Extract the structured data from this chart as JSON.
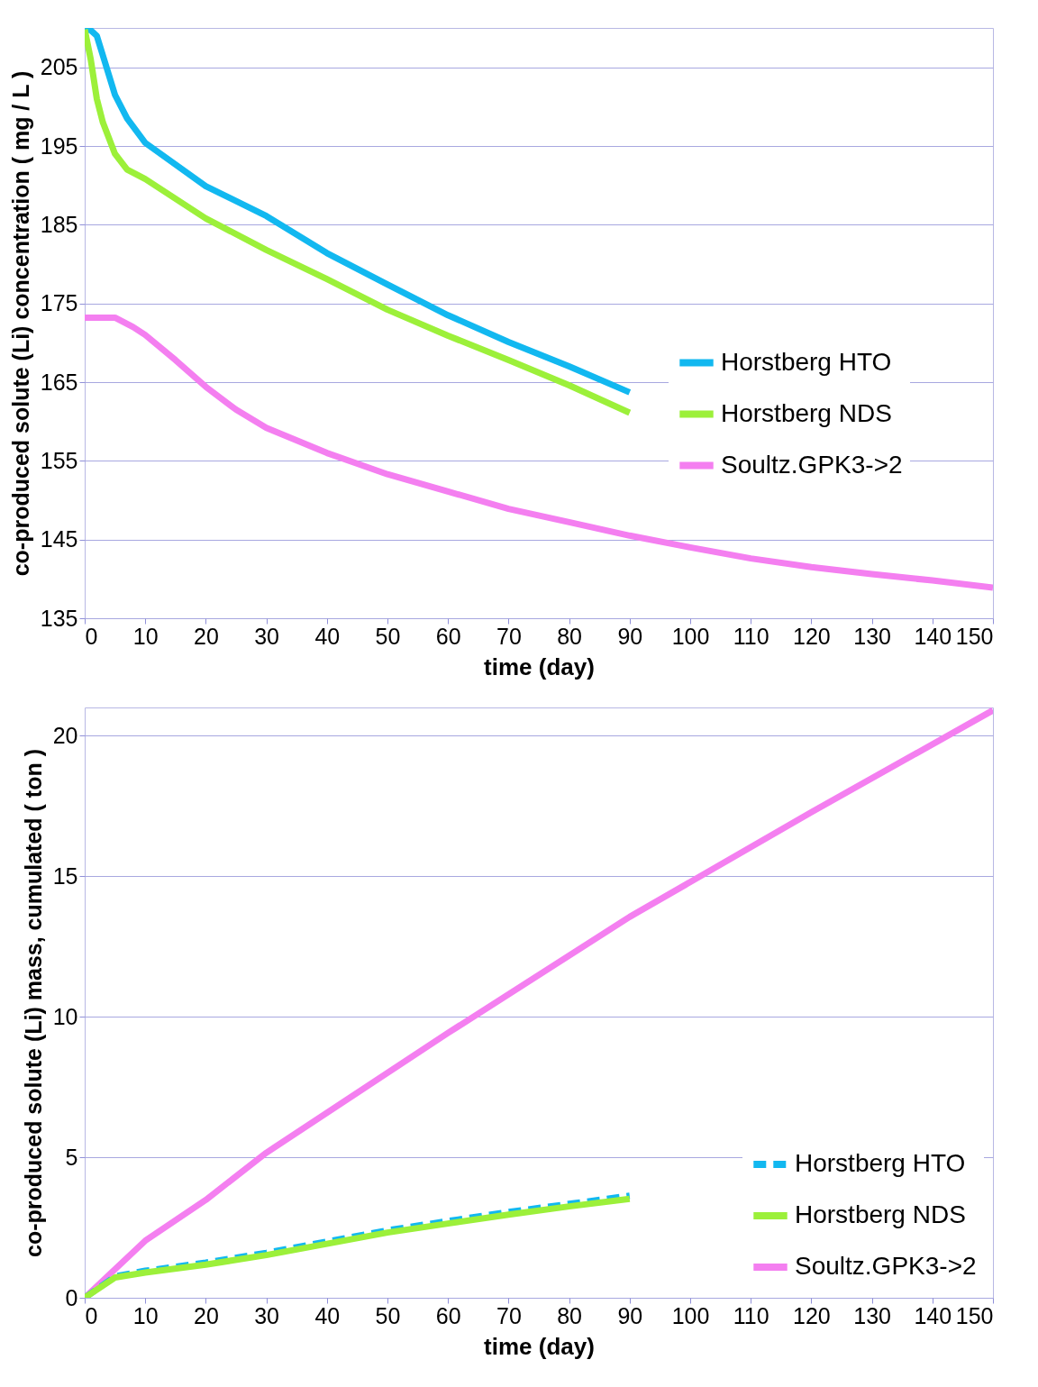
{
  "chart_data": [
    {
      "type": "line",
      "xlabel": "time (day)",
      "ylabel": "co-produced solute (Li) concentration ( mg / L )",
      "xlim": [
        0,
        150
      ],
      "xticks": [
        0,
        10,
        20,
        30,
        40,
        50,
        60,
        70,
        80,
        90,
        100,
        110,
        120,
        130,
        140,
        150
      ],
      "ylim": [
        135,
        210
      ],
      "yticks": [
        135,
        145,
        155,
        165,
        175,
        185,
        195,
        205
      ],
      "grid": "y",
      "legend": "right",
      "marker": "none",
      "series": [
        {
          "name": "Horstberg HTO",
          "color": "#12b8f0",
          "line_style": "solid",
          "x": [
            0,
            1,
            2,
            3,
            5,
            7,
            10,
            20,
            30,
            40,
            50,
            60,
            70,
            80,
            90
          ],
          "values": [
            209.8,
            209.7,
            209,
            206.5,
            201.5,
            198.5,
            195.4,
            189.9,
            186.1,
            181.4,
            177.4,
            173.5,
            170.1,
            167,
            163.7
          ]
        },
        {
          "name": "Horstberg NDS",
          "color": "#9cf03a",
          "line_style": "solid",
          "x": [
            0,
            1,
            2,
            3,
            5,
            7,
            10,
            20,
            30,
            40,
            50,
            60,
            70,
            80,
            90
          ],
          "values": [
            209.8,
            206,
            201,
            198,
            194,
            192,
            190.8,
            185.8,
            181.8,
            178.1,
            174.2,
            170.9,
            167.8,
            164.6,
            161.1
          ]
        },
        {
          "name": "Soultz.GPK3->2",
          "color": "#f47ff0",
          "line_style": "solid",
          "x": [
            0,
            5,
            8,
            10,
            15,
            20,
            25,
            30,
            40,
            50,
            60,
            70,
            80,
            90,
            100,
            110,
            120,
            130,
            140,
            150
          ],
          "values": [
            173.2,
            173.2,
            172,
            171,
            167.8,
            164.4,
            161.5,
            159.2,
            156,
            153.3,
            151.1,
            148.9,
            147.2,
            145.5,
            144,
            142.6,
            141.5,
            140.6,
            139.8,
            138.9
          ]
        }
      ]
    },
    {
      "type": "line",
      "xlabel": "time (day)",
      "ylabel": "co-produced solute (Li) mass, cumulated ( ton )",
      "xlim": [
        0,
        150
      ],
      "xticks": [
        0,
        10,
        20,
        30,
        40,
        50,
        60,
        70,
        80,
        90,
        100,
        110,
        120,
        130,
        140,
        150
      ],
      "ylim": [
        0,
        21
      ],
      "yticks": [
        0,
        5,
        10,
        15,
        20
      ],
      "grid": "y",
      "legend": "bottom right",
      "marker": "none",
      "series": [
        {
          "name": "Soultz.GPK3->2",
          "color": "#f47ff0",
          "line_style": "solid",
          "x": [
            0,
            10,
            20,
            30,
            60,
            90,
            120,
            150
          ],
          "values": [
            0,
            2.03,
            3.48,
            5.16,
            9.42,
            13.55,
            17.27,
            20.9
          ]
        },
        {
          "name": "Horstberg HTO",
          "color": "#12b8f0",
          "line_style": "dashed",
          "x": [
            0,
            5,
            10,
            20,
            30,
            40,
            50,
            60,
            70,
            80,
            90
          ],
          "values": [
            0,
            0.76,
            0.96,
            1.25,
            1.6,
            2,
            2.4,
            2.73,
            3.05,
            3.34,
            3.63
          ]
        },
        {
          "name": "Horstberg NDS",
          "color": "#9cf03a",
          "line_style": "solid",
          "x": [
            0,
            5,
            10,
            20,
            30,
            40,
            50,
            60,
            70,
            80,
            90
          ],
          "values": [
            0,
            0.72,
            0.9,
            1.18,
            1.52,
            1.92,
            2.32,
            2.64,
            2.96,
            3.25,
            3.52
          ]
        }
      ]
    }
  ]
}
